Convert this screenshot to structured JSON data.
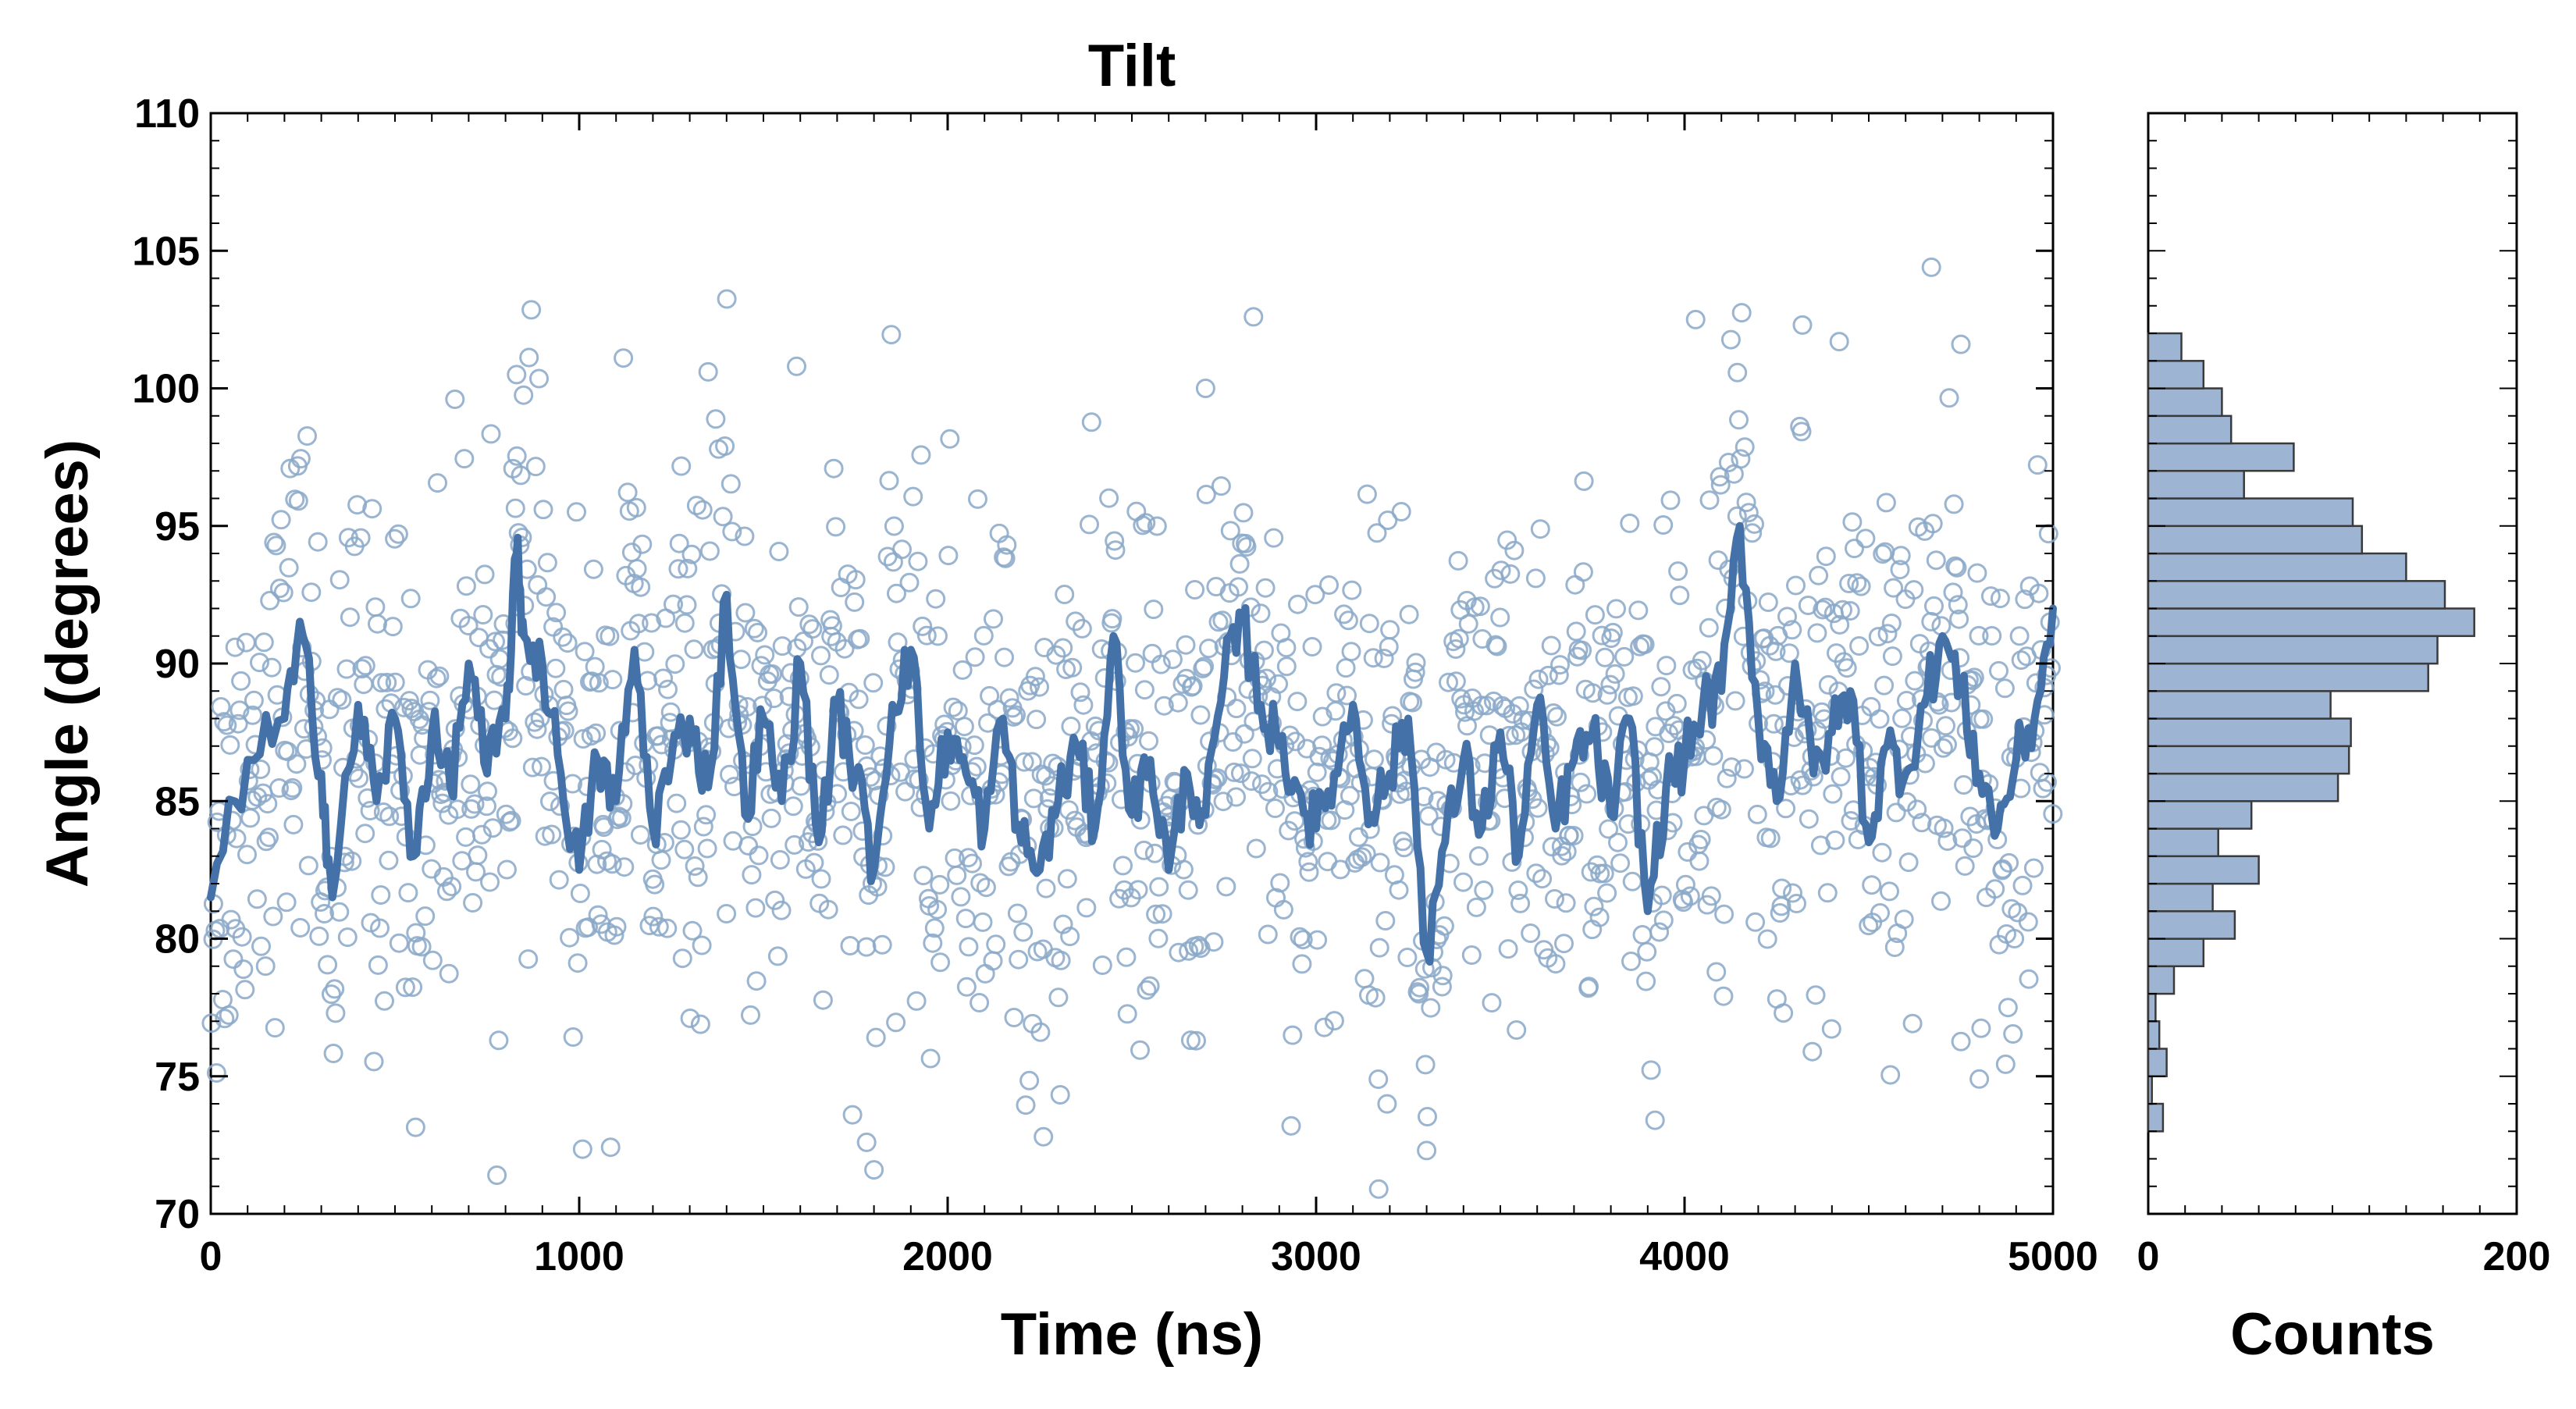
{
  "chart_data": [
    {
      "type": "scatter",
      "title": "Tilt",
      "xlabel": "Time (ns)",
      "ylabel": "Angle (degrees)",
      "xlim": [
        0,
        5000
      ],
      "ylim": [
        70,
        110
      ],
      "xticks": [
        0,
        1000,
        2000,
        3000,
        4000,
        5000
      ],
      "yticks": [
        70,
        75,
        80,
        85,
        90,
        95,
        100,
        105,
        110
      ],
      "grid": false,
      "colors": {
        "points": "#8aa8c8",
        "line": "#4472a8"
      },
      "series": [
        {
          "kind": "scatter",
          "marker": "open-circle",
          "description_of_distribution": {
            "n_points": 1500,
            "mean": 86.5,
            "std": 5.0
          },
          "highlighted_points": [
            [
              4670,
              104.4
            ],
            [
              2830,
              102.6
            ],
            [
              4030,
              102.5
            ],
            [
              4320,
              102.3
            ],
            [
              4420,
              101.7
            ],
            [
              4750,
              101.6
            ],
            [
              1120,
              101.1
            ],
            [
              1590,
              100.8
            ],
            [
              830,
              100.5
            ],
            [
              1350,
              100.6
            ],
            [
              2700,
              100.0
            ],
            [
              3170,
              70.9
            ],
            [
              1800,
              71.6
            ],
            [
              1780,
              72.6
            ],
            [
              2260,
              72.8
            ],
            [
              3300,
              72.3
            ],
            [
              3920,
              73.4
            ],
            [
              4800,
              74.9
            ]
          ]
        },
        {
          "kind": "line",
          "description": "running average",
          "x": [
            0,
            100,
            200,
            250,
            300,
            330,
            400,
            450,
            500,
            550,
            600,
            650,
            700,
            750,
            800,
            830,
            850,
            900,
            950,
            1000,
            1050,
            1100,
            1150,
            1200,
            1250,
            1300,
            1350,
            1400,
            1450,
            1500,
            1550,
            1600,
            1650,
            1700,
            1750,
            1800,
            1850,
            1900,
            1950,
            2000,
            2050,
            2100,
            2150,
            2200,
            2250,
            2300,
            2350,
            2400,
            2450,
            2500,
            2550,
            2600,
            2650,
            2700,
            2750,
            2800,
            2850,
            2900,
            2950,
            3000,
            3050,
            3100,
            3150,
            3200,
            3250,
            3300,
            3350,
            3400,
            3450,
            3500,
            3550,
            3600,
            3650,
            3700,
            3750,
            3800,
            3850,
            3900,
            3950,
            4000,
            4050,
            4100,
            4150,
            4200,
            4250,
            4300,
            4350,
            4400,
            4450,
            4500,
            4550,
            4600,
            4650,
            4700,
            4750,
            4800,
            4850,
            4900,
            4950,
            5000
          ],
          "y": [
            81.5,
            86.5,
            88.0,
            91.0,
            86.0,
            81.5,
            88.5,
            85.0,
            88.0,
            83.0,
            87.5,
            85.5,
            90.0,
            86.0,
            88.0,
            94.0,
            91.0,
            90.0,
            86.0,
            82.5,
            86.5,
            85.0,
            90.5,
            84.0,
            86.5,
            88.0,
            85.5,
            92.5,
            84.5,
            88.0,
            85.0,
            90.0,
            83.5,
            88.5,
            86.0,
            82.5,
            88.5,
            90.5,
            84.0,
            87.5,
            86.0,
            84.0,
            88.0,
            83.5,
            82.5,
            85.0,
            87.0,
            84.0,
            91.0,
            84.5,
            86.5,
            82.5,
            86.0,
            84.5,
            89.5,
            91.5,
            88.5,
            87.0,
            85.5,
            84.0,
            86.0,
            88.5,
            84.5,
            86.0,
            88.0,
            79.5,
            83.5,
            86.5,
            84.0,
            87.5,
            83.0,
            88.5,
            84.0,
            86.5,
            87.5,
            84.5,
            88.0,
            81.0,
            85.5,
            86.5,
            88.5,
            89.0,
            95.0,
            88.0,
            85.0,
            90.0,
            86.0,
            87.5,
            89.0,
            83.5,
            87.0,
            86.0,
            88.5,
            91.0,
            89.0,
            86.0,
            84.0,
            86.5,
            88.0,
            92.0
          ]
        }
      ]
    },
    {
      "type": "bar",
      "orientation": "horizontal",
      "xlabel": "Counts",
      "xlim": [
        0,
        200
      ],
      "xticks": [
        0,
        200
      ],
      "ylim": [
        70,
        110
      ],
      "colors": {
        "bar_fill": "#9db5d3",
        "bar_edge": "#3a3a3a"
      },
      "bin_width": 1,
      "bins_start": [
        73,
        74,
        75,
        76,
        77,
        78,
        79,
        80,
        81,
        82,
        83,
        84,
        85,
        86,
        87,
        88,
        89,
        90,
        91,
        92,
        93,
        94,
        95,
        96,
        97,
        98,
        99,
        100,
        101
      ],
      "counts": [
        8,
        2,
        10,
        6,
        4,
        14,
        30,
        47,
        35,
        60,
        38,
        56,
        103,
        109,
        110,
        99,
        152,
        157,
        177,
        161,
        140,
        116,
        111,
        52,
        79,
        45,
        40,
        30,
        18
      ]
    }
  ]
}
